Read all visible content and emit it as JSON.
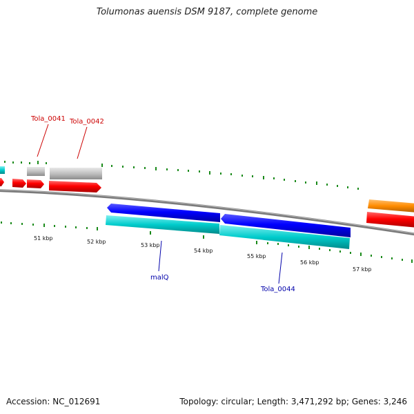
{
  "title": "Tolumonas auensis DSM 9187, complete genome",
  "footer": {
    "accession": "Accession: NC_012691",
    "summary": "Topology: circular; Length: 3,471,292 bp; Genes: 3,246"
  },
  "colors": {
    "backbone": "#808080",
    "tick": "#1a8a1a",
    "forward_gene": "#ff0000",
    "forward_other": "#c0c0c0",
    "reverse_gene": "#0000ff",
    "reverse_cds": "#00cccc",
    "orange_feature": "#ff8c00",
    "label_red": "#cc0000",
    "label_blue": "#0000aa"
  },
  "scale_labels": [
    "51 kbp",
    "52 kbp",
    "53 kbp",
    "54 kbp",
    "55 kbp",
    "56 kbp",
    "57 kbp"
  ],
  "gene_labels": {
    "tola_0041": "Tola_0041",
    "tola_0042": "Tola_0042",
    "malq": "malQ",
    "tola_0044": "Tola_0044"
  }
}
